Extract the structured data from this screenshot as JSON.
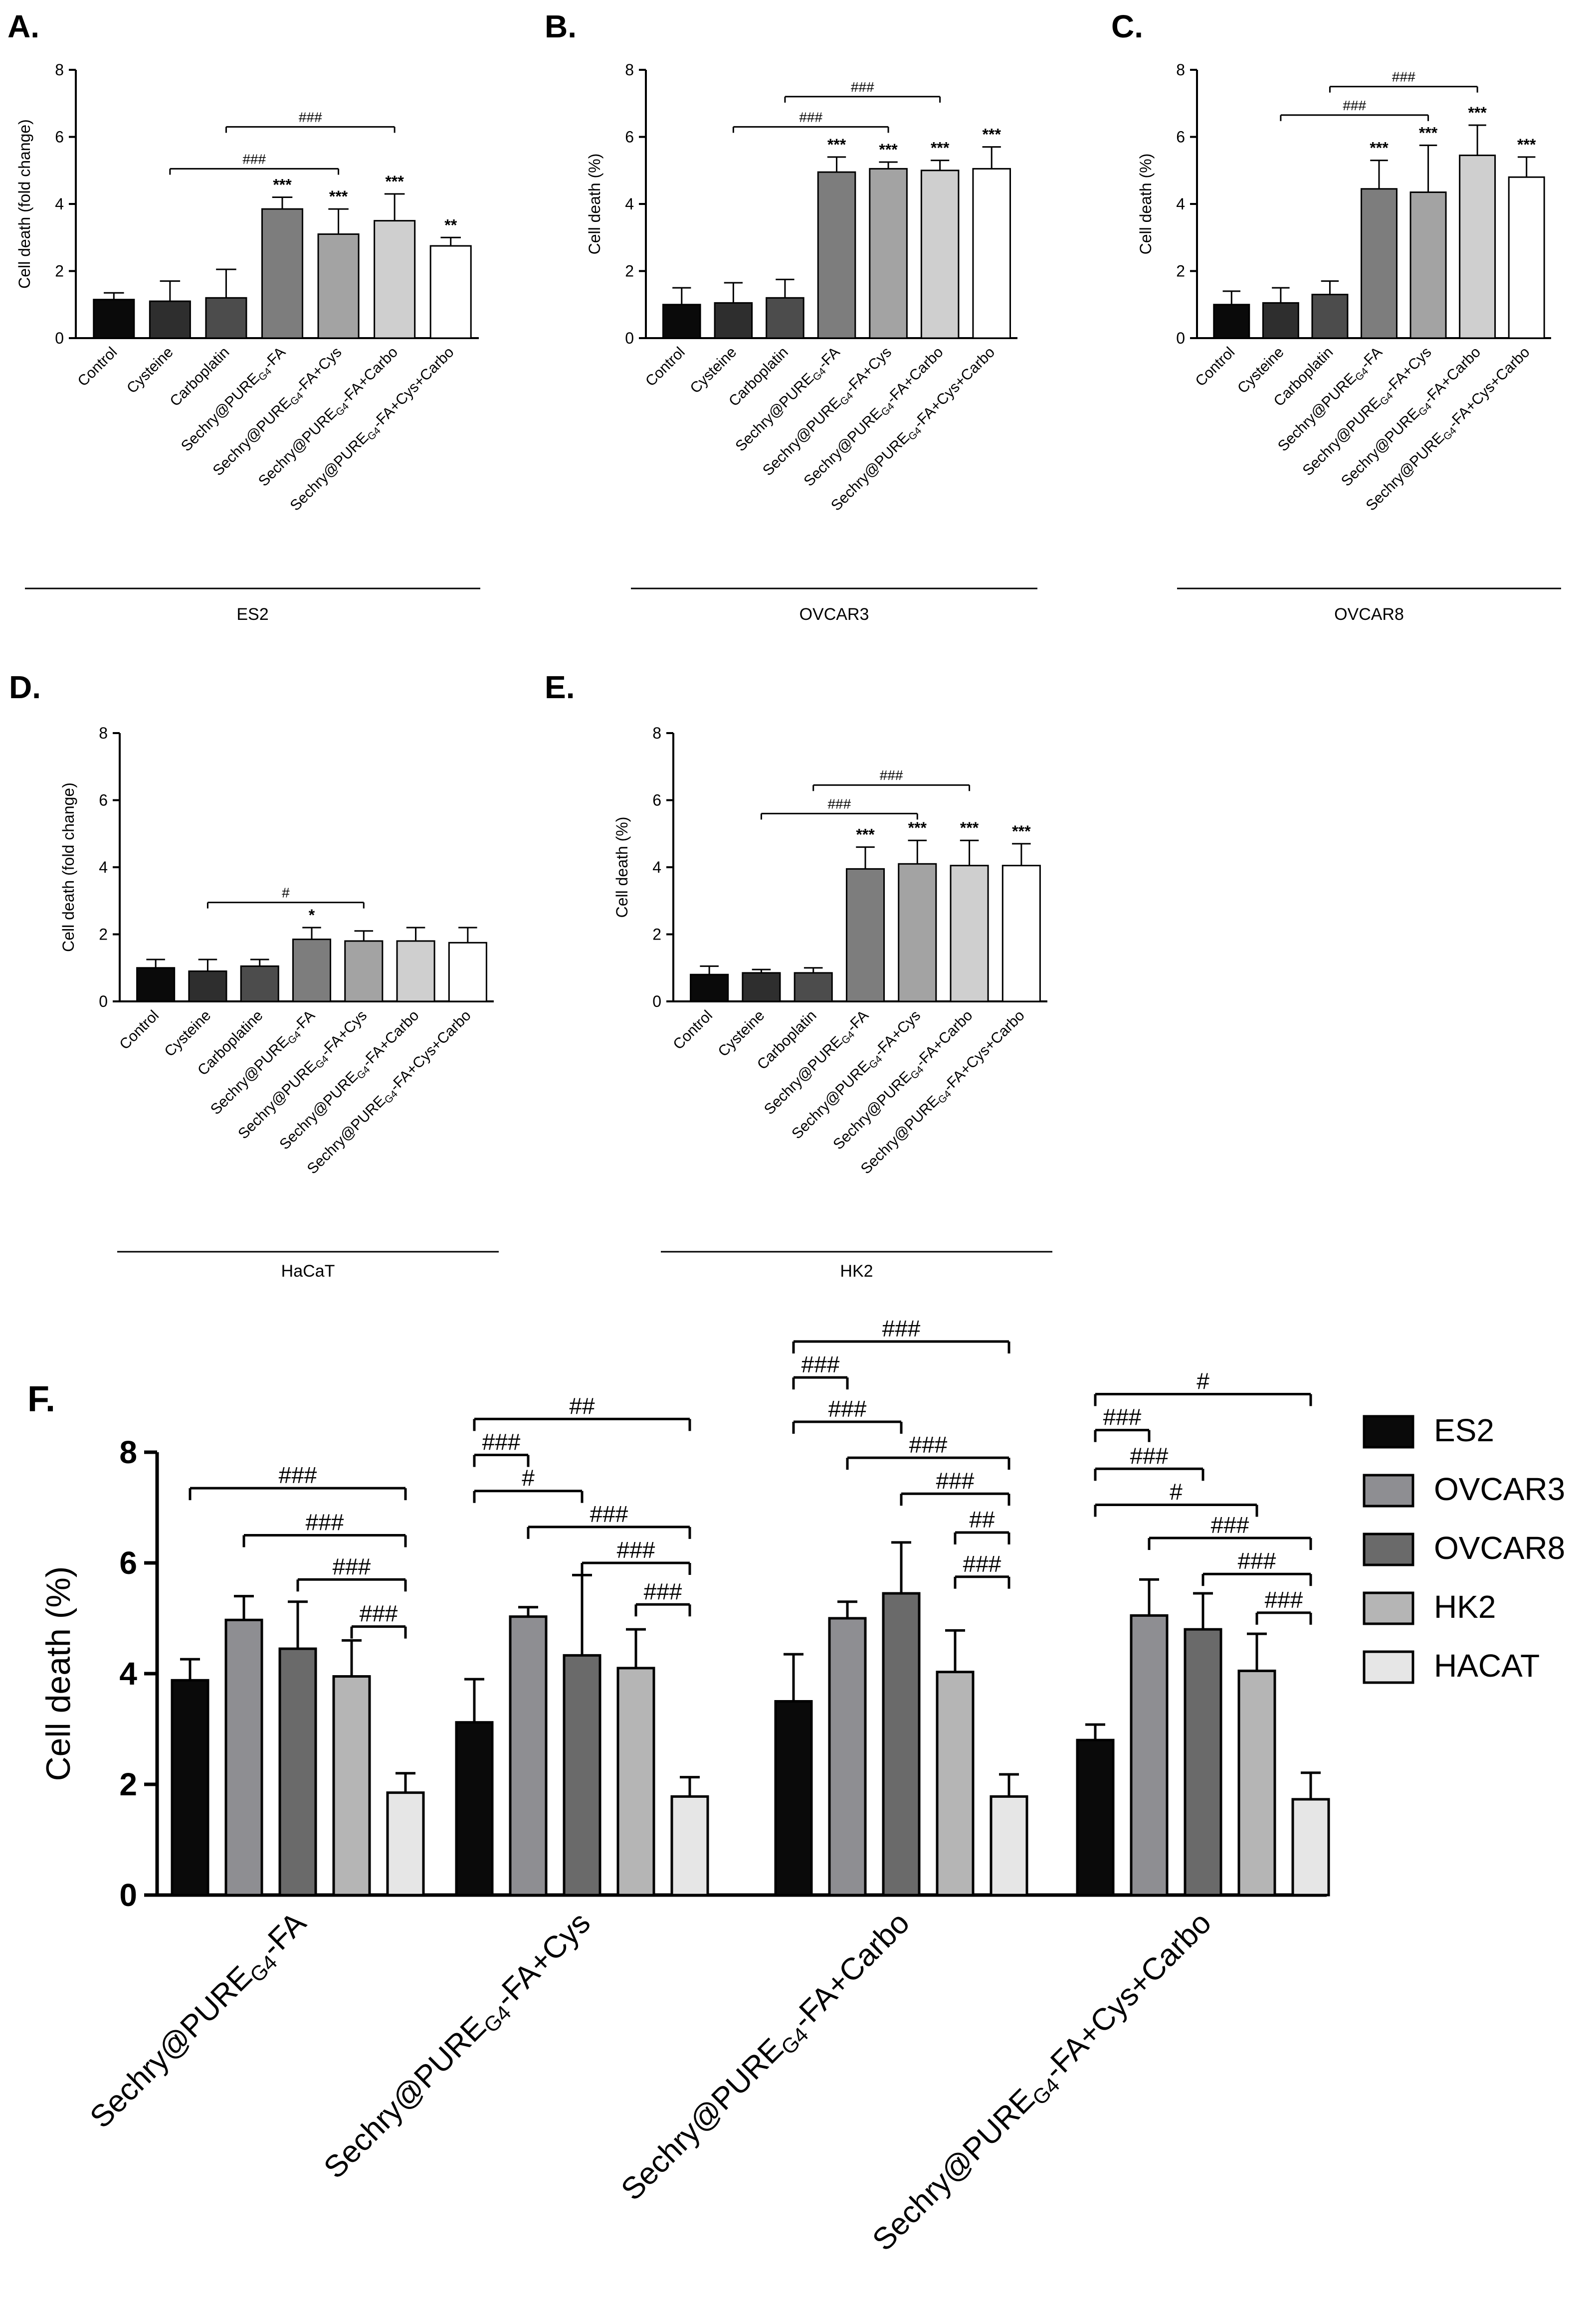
{
  "figure": {
    "panel_letters": {
      "A": "A.",
      "B": "B.",
      "C": "C.",
      "D": "D.",
      "E": "E.",
      "F": "F."
    },
    "colors": {
      "black": "#0a0a0a",
      "dark": "#2e2e2e",
      "darkgray": "#4c4c4c",
      "gray": "#7d7d7d",
      "midgray": "#a3a3a3",
      "lightgray": "#cfcfcf",
      "white": "#ffffff",
      "ovcar3": "#8e8e92",
      "ovcar8": "#6a6a6a",
      "hk2": "#b5b5b5",
      "hacat": "#e6e6e6"
    }
  },
  "chart_data": [
    {
      "id": "A",
      "type": "bar",
      "title": "ES2",
      "ylabel": "Cell death (fold change)",
      "ylim": [
        0,
        8
      ],
      "yticks": [
        "0",
        "2",
        "4",
        "6",
        "8"
      ],
      "categories": [
        {
          "pre": "Control",
          "sub": "",
          "post": ""
        },
        {
          "pre": "Cysteine",
          "sub": "",
          "post": ""
        },
        {
          "pre": "Carboplatin",
          "sub": "",
          "post": ""
        },
        {
          "pre": "Sechry@PURE",
          "sub": "G4",
          "post": "-FA"
        },
        {
          "pre": "Sechry@PURE",
          "sub": "G4",
          "post": "-FA+Cys"
        },
        {
          "pre": "Sechry@PURE",
          "sub": "G4",
          "post": "-FA+Carbo"
        },
        {
          "pre": "Sechry@PURE",
          "sub": "G4",
          "post": "-FA+Cys+Carbo"
        }
      ],
      "values": [
        1.15,
        1.1,
        1.2,
        3.85,
        3.1,
        3.5,
        2.75
      ],
      "errors": [
        0.2,
        0.6,
        0.85,
        0.35,
        0.75,
        0.8,
        0.25
      ],
      "stars": [
        "",
        "",
        "",
        "***",
        "***",
        "***",
        "**"
      ],
      "brackets": [
        {
          "from": 2,
          "to": 5,
          "y": 6.3,
          "label": "###"
        },
        {
          "from": 1,
          "to": 4,
          "y": 5.05,
          "label": "###"
        }
      ]
    },
    {
      "id": "B",
      "type": "bar",
      "title": "OVCAR3",
      "ylabel": "Cell death (%)",
      "ylim": [
        0,
        8
      ],
      "yticks": [
        "0",
        "2",
        "4",
        "6",
        "8"
      ],
      "categories": [
        {
          "pre": "Control",
          "sub": "",
          "post": ""
        },
        {
          "pre": "Cysteine",
          "sub": "",
          "post": ""
        },
        {
          "pre": "Carboplatin",
          "sub": "",
          "post": ""
        },
        {
          "pre": "Sechry@PURE",
          "sub": "G4",
          "post": "-FA"
        },
        {
          "pre": "Sechry@PURE",
          "sub": "G4",
          "post": "-FA+Cys"
        },
        {
          "pre": "Sechry@PURE",
          "sub": "G4",
          "post": "-FA+Carbo"
        },
        {
          "pre": "Sechry@PURE",
          "sub": "G4",
          "post": "-FA+Cys+Carbo"
        }
      ],
      "values": [
        1.0,
        1.05,
        1.2,
        4.95,
        5.05,
        5.0,
        5.05
      ],
      "errors": [
        0.5,
        0.6,
        0.55,
        0.45,
        0.2,
        0.3,
        0.65
      ],
      "stars": [
        "",
        "",
        "",
        "***",
        "***",
        "***",
        "***"
      ],
      "brackets": [
        {
          "from": 2,
          "to": 5,
          "y": 7.2,
          "label": "###"
        },
        {
          "from": 1,
          "to": 4,
          "y": 6.3,
          "label": "###"
        }
      ]
    },
    {
      "id": "C",
      "type": "bar",
      "title": "OVCAR8",
      "ylabel": "Cell death (%)",
      "ylim": [
        0,
        8
      ],
      "yticks": [
        "0",
        "2",
        "4",
        "6",
        "8"
      ],
      "categories": [
        {
          "pre": "Control",
          "sub": "",
          "post": ""
        },
        {
          "pre": "Cysteine",
          "sub": "",
          "post": ""
        },
        {
          "pre": "Carboplatin",
          "sub": "",
          "post": ""
        },
        {
          "pre": "Sechry@PURE",
          "sub": "G4",
          "post": "-FA"
        },
        {
          "pre": "Sechry@PURE",
          "sub": "G4",
          "post": "-FA+Cys"
        },
        {
          "pre": "Sechry@PURE",
          "sub": "G4",
          "post": "-FA+Carbo"
        },
        {
          "pre": "Sechry@PURE",
          "sub": "G4",
          "post": "-FA+Cys+Carbo"
        }
      ],
      "values": [
        1.0,
        1.05,
        1.3,
        4.45,
        4.35,
        5.45,
        4.8
      ],
      "errors": [
        0.4,
        0.45,
        0.4,
        0.85,
        1.4,
        0.9,
        0.6
      ],
      "stars": [
        "",
        "",
        "",
        "***",
        "***",
        "***",
        "***"
      ],
      "brackets": [
        {
          "from": 2,
          "to": 5,
          "y": 7.5,
          "label": "###"
        },
        {
          "from": 1,
          "to": 4,
          "y": 6.65,
          "label": "###"
        }
      ]
    },
    {
      "id": "D",
      "type": "bar",
      "title": "HaCaT",
      "ylabel": "Cell death (fold change)",
      "ylim": [
        0,
        8
      ],
      "yticks": [
        "0",
        "2",
        "4",
        "6",
        "8"
      ],
      "categories": [
        {
          "pre": "Control",
          "sub": "",
          "post": ""
        },
        {
          "pre": "Cysteine",
          "sub": "",
          "post": ""
        },
        {
          "pre": "Carboplatine",
          "sub": "",
          "post": ""
        },
        {
          "pre": "Sechry@PURE",
          "sub": "G4",
          "post": "-FA"
        },
        {
          "pre": "Sechry@PURE",
          "sub": "G4",
          "post": "-FA+Cys"
        },
        {
          "pre": "Sechry@PURE",
          "sub": "G4",
          "post": "-FA+Carbo"
        },
        {
          "pre": "Sechry@PURE",
          "sub": "G4",
          "post": "-FA+Cys+Carbo"
        }
      ],
      "values": [
        1.0,
        0.9,
        1.05,
        1.85,
        1.8,
        1.8,
        1.75
      ],
      "errors": [
        0.25,
        0.35,
        0.2,
        0.35,
        0.3,
        0.4,
        0.45
      ],
      "stars": [
        "",
        "",
        "",
        "*",
        "",
        "",
        ""
      ],
      "brackets": [
        {
          "from": 1,
          "to": 4,
          "y": 2.95,
          "label": "#"
        }
      ]
    },
    {
      "id": "E",
      "type": "bar",
      "title": "HK2",
      "ylabel": "Cell death (%)",
      "ylim": [
        0,
        8
      ],
      "yticks": [
        "0",
        "2",
        "4",
        "6",
        "8"
      ],
      "categories": [
        {
          "pre": "Control",
          "sub": "",
          "post": ""
        },
        {
          "pre": "Cysteine",
          "sub": "",
          "post": ""
        },
        {
          "pre": "Carboplatin",
          "sub": "",
          "post": ""
        },
        {
          "pre": "Sechry@PURE",
          "sub": "G4",
          "post": "-FA"
        },
        {
          "pre": "Sechry@PURE",
          "sub": "G4",
          "post": "-FA+Cys"
        },
        {
          "pre": "Sechry@PURE",
          "sub": "G4",
          "post": "-FA+Carbo"
        },
        {
          "pre": "Sechry@PURE",
          "sub": "G4",
          "post": "-FA+Cys+Carbo"
        }
      ],
      "values": [
        0.8,
        0.85,
        0.85,
        3.95,
        4.1,
        4.05,
        4.05
      ],
      "errors": [
        0.25,
        0.1,
        0.15,
        0.65,
        0.7,
        0.75,
        0.65
      ],
      "stars": [
        "",
        "",
        "",
        "***",
        "***",
        "***",
        "***"
      ],
      "brackets": [
        {
          "from": 2,
          "to": 5,
          "y": 6.45,
          "label": "###"
        },
        {
          "from": 1,
          "to": 4,
          "y": 5.6,
          "label": "###"
        }
      ]
    },
    {
      "id": "F",
      "type": "bar",
      "title": "",
      "ylabel": "Cell death (%)",
      "ylim": [
        0,
        8
      ],
      "yticks": [
        "0",
        "2",
        "4",
        "6",
        "8"
      ],
      "categories": [
        {
          "pre": "Sechry@PURE",
          "sub": "G4",
          "post": "-FA"
        },
        {
          "pre": "Sechry@PURE",
          "sub": "G4",
          "post": "-FA+Cys"
        },
        {
          "pre": "Sechry@PURE",
          "sub": "G4",
          "post": "-FA+Carbo"
        },
        {
          "pre": "Sechry@PURE",
          "sub": "G4",
          "post": "-FA+Cys+Carbo"
        }
      ],
      "series": [
        {
          "name": "ES2",
          "color": "#0a0a0a",
          "values": [
            3.88,
            3.12,
            3.5,
            2.8
          ],
          "errors": [
            0.38,
            0.78,
            0.85,
            0.28
          ]
        },
        {
          "name": "OVCAR3",
          "color": "#8e8e92",
          "values": [
            4.97,
            5.03,
            5.0,
            5.05
          ],
          "errors": [
            0.43,
            0.17,
            0.3,
            0.65
          ]
        },
        {
          "name": "OVCAR8",
          "color": "#6a6a6a",
          "values": [
            4.45,
            4.33,
            5.45,
            4.8
          ],
          "errors": [
            0.85,
            1.45,
            0.92,
            0.65
          ]
        },
        {
          "name": "HK2",
          "color": "#b5b5b5",
          "values": [
            3.95,
            4.1,
            4.03,
            4.05
          ],
          "errors": [
            0.65,
            0.7,
            0.75,
            0.67
          ]
        },
        {
          "name": "HACAT",
          "color": "#e6e6e6",
          "values": [
            1.85,
            1.78,
            1.78,
            1.73
          ],
          "errors": [
            0.35,
            0.35,
            0.4,
            0.48
          ]
        }
      ],
      "brackets": [
        {
          "group": 0,
          "from": 0,
          "to": 4,
          "y": 7.35,
          "label": "###"
        },
        {
          "group": 0,
          "from": 1,
          "to": 4,
          "y": 6.5,
          "label": "###"
        },
        {
          "group": 0,
          "from": 2,
          "to": 4,
          "y": 5.7,
          "label": "###"
        },
        {
          "group": 0,
          "from": 3,
          "to": 4,
          "y": 4.85,
          "label": "###"
        },
        {
          "group": 1,
          "from": 0,
          "to": 4,
          "y": 8.6,
          "label": "##"
        },
        {
          "group": 1,
          "from": 0,
          "to": 1,
          "y": 7.95,
          "label": "###"
        },
        {
          "group": 1,
          "from": 0,
          "to": 2,
          "y": 7.3,
          "label": "#"
        },
        {
          "group": 1,
          "from": 1,
          "to": 4,
          "y": 6.65,
          "label": "###"
        },
        {
          "group": 1,
          "from": 2,
          "to": 4,
          "y": 6.0,
          "label": "###"
        },
        {
          "group": 1,
          "from": 3,
          "to": 4,
          "y": 5.25,
          "label": "###"
        },
        {
          "group": 2,
          "from": 0,
          "to": 4,
          "y": 10.0,
          "label": "###"
        },
        {
          "group": 2,
          "from": 0,
          "to": 1,
          "y": 9.35,
          "label": "###"
        },
        {
          "group": 2,
          "from": 0,
          "to": 2,
          "y": 8.55,
          "label": "###"
        },
        {
          "group": 2,
          "from": 1,
          "to": 4,
          "y": 7.9,
          "label": "###"
        },
        {
          "group": 2,
          "from": 2,
          "to": 4,
          "y": 7.25,
          "label": "###"
        },
        {
          "group": 2,
          "from": 3,
          "to": 4,
          "y": 6.55,
          "label": "##"
        },
        {
          "group": 2,
          "from": 3,
          "to": 4,
          "y": 5.75,
          "label": "###"
        },
        {
          "group": 3,
          "from": 0,
          "to": 4,
          "y": 9.05,
          "label": "#"
        },
        {
          "group": 3,
          "from": 0,
          "to": 1,
          "y": 8.4,
          "label": "###"
        },
        {
          "group": 3,
          "from": 0,
          "to": 2,
          "y": 7.7,
          "label": "###"
        },
        {
          "group": 3,
          "from": 0,
          "to": 3,
          "y": 7.05,
          "label": "#"
        },
        {
          "group": 3,
          "from": 1,
          "to": 4,
          "y": 6.45,
          "label": "###"
        },
        {
          "group": 3,
          "from": 2,
          "to": 4,
          "y": 5.8,
          "label": "###"
        },
        {
          "group": 3,
          "from": 3,
          "to": 4,
          "y": 5.1,
          "label": "###"
        }
      ],
      "legend_position": "right"
    }
  ]
}
